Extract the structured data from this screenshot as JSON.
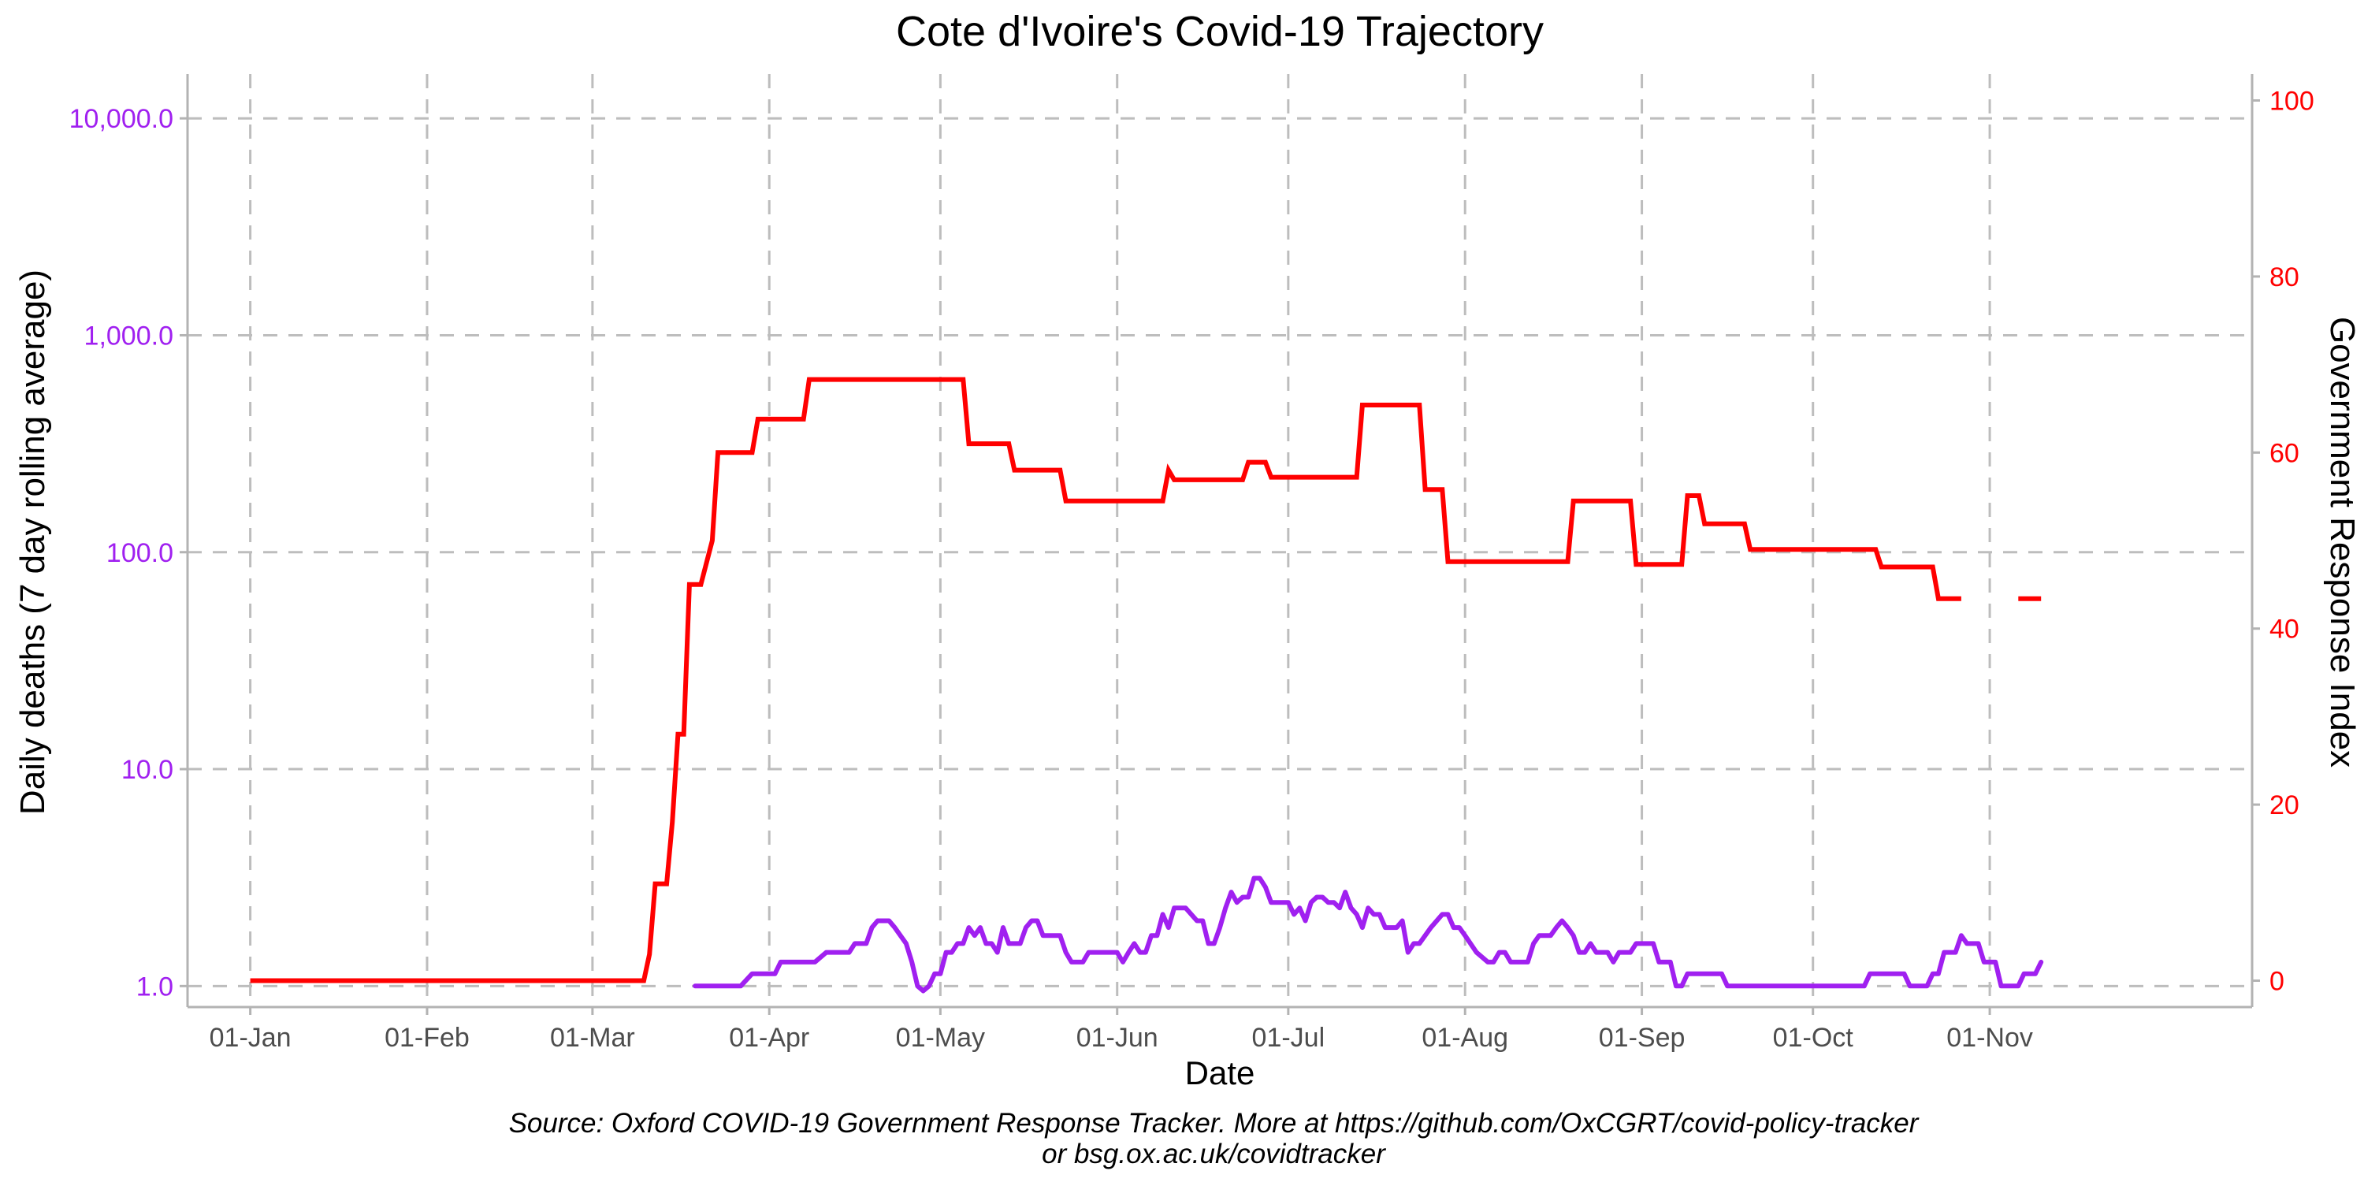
{
  "chart_data": {
    "type": "line",
    "title": "Cote d'Ivoire's Covid-19 Trajectory",
    "xlabel": "Date",
    "caption": [
      "Source: Oxford COVID-19 Government Response Tracker. More at https://github.com/OxCGRT/covid-policy-tracker",
      "or bsg.ox.ac.uk/covidtracker"
    ],
    "x_axis": {
      "type": "date",
      "range": [
        "2019-12-21",
        "2020-12-17"
      ],
      "ticks": [
        {
          "date": "2020-01-01",
          "label": "01-Jan"
        },
        {
          "date": "2020-02-01",
          "label": "01-Feb"
        },
        {
          "date": "2020-03-01",
          "label": "01-Mar"
        },
        {
          "date": "2020-04-01",
          "label": "01-Apr"
        },
        {
          "date": "2020-05-01",
          "label": "01-May"
        },
        {
          "date": "2020-06-01",
          "label": "01-Jun"
        },
        {
          "date": "2020-07-01",
          "label": "01-Jul"
        },
        {
          "date": "2020-08-01",
          "label": "01-Aug"
        },
        {
          "date": "2020-09-01",
          "label": "01-Sep"
        },
        {
          "date": "2020-10-01",
          "label": "01-Oct"
        },
        {
          "date": "2020-11-01",
          "label": "01-Nov"
        }
      ]
    },
    "y_left": {
      "label": "Daily deaths (7 day rolling average)",
      "scale": "log10",
      "range": [
        0.8,
        16000
      ],
      "ticks": [
        {
          "value": 1,
          "label": "1.0"
        },
        {
          "value": 10,
          "label": "10.0"
        },
        {
          "value": 100,
          "label": "100.0"
        },
        {
          "value": 1000,
          "label": "1,000.0"
        },
        {
          "value": 10000,
          "label": "10,000.0"
        }
      ],
      "color": "#a020f0"
    },
    "y_right": {
      "label": "Government Response Index",
      "scale": "linear",
      "range": [
        -3,
        103
      ],
      "ticks": [
        {
          "value": 0,
          "label": "0"
        },
        {
          "value": 20,
          "label": "20"
        },
        {
          "value": 40,
          "label": "40"
        },
        {
          "value": 60,
          "label": "60"
        },
        {
          "value": 80,
          "label": "80"
        },
        {
          "value": 100,
          "label": "100"
        }
      ],
      "color": "#ff0000"
    },
    "grid": true,
    "series": [
      {
        "axis": "left",
        "color": "#a020f0",
        "points": [
          [
            "2020-03-19",
            1.0
          ],
          [
            "2020-03-27",
            1.0
          ],
          [
            "2020-03-29",
            1.14
          ],
          [
            "2020-04-02",
            1.14
          ],
          [
            "2020-04-03",
            1.29
          ],
          [
            "2020-04-09",
            1.29
          ],
          [
            "2020-04-11",
            1.43
          ],
          [
            "2020-04-15",
            1.43
          ],
          [
            "2020-04-16",
            1.57
          ],
          [
            "2020-04-18",
            1.57
          ],
          [
            "2020-04-19",
            1.86
          ],
          [
            "2020-04-20",
            2.0
          ],
          [
            "2020-04-22",
            2.0
          ],
          [
            "2020-04-23",
            1.86
          ],
          [
            "2020-04-24",
            1.71
          ],
          [
            "2020-04-25",
            1.57
          ],
          [
            "2020-04-26",
            1.29
          ],
          [
            "2020-04-27",
            1.0
          ],
          [
            "2020-04-28",
            0.95
          ],
          [
            "2020-04-29",
            1.0
          ],
          [
            "2020-04-30",
            1.14
          ],
          [
            "2020-05-01",
            1.14
          ],
          [
            "2020-05-02",
            1.43
          ],
          [
            "2020-05-03",
            1.43
          ],
          [
            "2020-05-04",
            1.57
          ],
          [
            "2020-05-05",
            1.57
          ],
          [
            "2020-05-06",
            1.86
          ],
          [
            "2020-05-07",
            1.71
          ],
          [
            "2020-05-08",
            1.86
          ],
          [
            "2020-05-09",
            1.57
          ],
          [
            "2020-05-10",
            1.57
          ],
          [
            "2020-05-11",
            1.43
          ],
          [
            "2020-05-12",
            1.86
          ],
          [
            "2020-05-13",
            1.57
          ],
          [
            "2020-05-15",
            1.57
          ],
          [
            "2020-05-16",
            1.86
          ],
          [
            "2020-05-17",
            2.0
          ],
          [
            "2020-05-18",
            2.0
          ],
          [
            "2020-05-19",
            1.71
          ],
          [
            "2020-05-22",
            1.71
          ],
          [
            "2020-05-23",
            1.43
          ],
          [
            "2020-05-24",
            1.29
          ],
          [
            "2020-05-26",
            1.29
          ],
          [
            "2020-05-27",
            1.43
          ],
          [
            "2020-06-01",
            1.43
          ],
          [
            "2020-06-02",
            1.29
          ],
          [
            "2020-06-03",
            1.43
          ],
          [
            "2020-06-04",
            1.57
          ],
          [
            "2020-06-05",
            1.43
          ],
          [
            "2020-06-06",
            1.43
          ],
          [
            "2020-06-07",
            1.71
          ],
          [
            "2020-06-08",
            1.71
          ],
          [
            "2020-06-09",
            2.14
          ],
          [
            "2020-06-10",
            1.86
          ],
          [
            "2020-06-11",
            2.29
          ],
          [
            "2020-06-13",
            2.29
          ],
          [
            "2020-06-14",
            2.14
          ],
          [
            "2020-06-15",
            2.0
          ],
          [
            "2020-06-16",
            2.0
          ],
          [
            "2020-06-17",
            1.57
          ],
          [
            "2020-06-18",
            1.57
          ],
          [
            "2020-06-19",
            1.86
          ],
          [
            "2020-06-20",
            2.29
          ],
          [
            "2020-06-21",
            2.71
          ],
          [
            "2020-06-22",
            2.43
          ],
          [
            "2020-06-23",
            2.57
          ],
          [
            "2020-06-24",
            2.57
          ],
          [
            "2020-06-25",
            3.14
          ],
          [
            "2020-06-26",
            3.14
          ],
          [
            "2020-06-27",
            2.86
          ],
          [
            "2020-06-28",
            2.43
          ],
          [
            "2020-07-01",
            2.43
          ],
          [
            "2020-07-02",
            2.14
          ],
          [
            "2020-07-03",
            2.29
          ],
          [
            "2020-07-04",
            2.0
          ],
          [
            "2020-07-05",
            2.43
          ],
          [
            "2020-07-06",
            2.57
          ],
          [
            "2020-07-07",
            2.57
          ],
          [
            "2020-07-08",
            2.43
          ],
          [
            "2020-07-09",
            2.43
          ],
          [
            "2020-07-10",
            2.29
          ],
          [
            "2020-07-11",
            2.71
          ],
          [
            "2020-07-12",
            2.29
          ],
          [
            "2020-07-13",
            2.14
          ],
          [
            "2020-07-14",
            1.86
          ],
          [
            "2020-07-15",
            2.29
          ],
          [
            "2020-07-16",
            2.14
          ],
          [
            "2020-07-17",
            2.14
          ],
          [
            "2020-07-18",
            1.86
          ],
          [
            "2020-07-20",
            1.86
          ],
          [
            "2020-07-21",
            2.0
          ],
          [
            "2020-07-22",
            1.43
          ],
          [
            "2020-07-23",
            1.57
          ],
          [
            "2020-07-24",
            1.57
          ],
          [
            "2020-07-26",
            1.86
          ],
          [
            "2020-07-28",
            2.14
          ],
          [
            "2020-07-29",
            2.14
          ],
          [
            "2020-07-30",
            1.86
          ],
          [
            "2020-07-31",
            1.86
          ],
          [
            "2020-08-01",
            1.71
          ],
          [
            "2020-08-03",
            1.43
          ],
          [
            "2020-08-05",
            1.29
          ],
          [
            "2020-08-06",
            1.29
          ],
          [
            "2020-08-07",
            1.43
          ],
          [
            "2020-08-08",
            1.43
          ],
          [
            "2020-08-09",
            1.29
          ],
          [
            "2020-08-12",
            1.29
          ],
          [
            "2020-08-13",
            1.57
          ],
          [
            "2020-08-14",
            1.71
          ],
          [
            "2020-08-16",
            1.71
          ],
          [
            "2020-08-17",
            1.86
          ],
          [
            "2020-08-18",
            2.0
          ],
          [
            "2020-08-19",
            1.86
          ],
          [
            "2020-08-20",
            1.71
          ],
          [
            "2020-08-21",
            1.43
          ],
          [
            "2020-08-22",
            1.43
          ],
          [
            "2020-08-23",
            1.57
          ],
          [
            "2020-08-24",
            1.43
          ],
          [
            "2020-08-26",
            1.43
          ],
          [
            "2020-08-27",
            1.29
          ],
          [
            "2020-08-28",
            1.43
          ],
          [
            "2020-08-30",
            1.43
          ],
          [
            "2020-08-31",
            1.57
          ],
          [
            "2020-09-03",
            1.57
          ],
          [
            "2020-09-04",
            1.29
          ],
          [
            "2020-09-06",
            1.29
          ],
          [
            "2020-09-07",
            1.0
          ],
          [
            "2020-09-08",
            1.0
          ],
          [
            "2020-09-09",
            1.14
          ],
          [
            "2020-09-15",
            1.14
          ],
          [
            "2020-09-16",
            1.0
          ],
          [
            "2020-10-10",
            1.0
          ],
          [
            "2020-10-11",
            1.14
          ],
          [
            "2020-10-17",
            1.14
          ],
          [
            "2020-10-18",
            1.0
          ],
          [
            "2020-10-21",
            1.0
          ],
          [
            "2020-10-22",
            1.14
          ],
          [
            "2020-10-23",
            1.14
          ],
          [
            "2020-10-24",
            1.43
          ],
          [
            "2020-10-26",
            1.43
          ],
          [
            "2020-10-27",
            1.71
          ],
          [
            "2020-10-28",
            1.57
          ],
          [
            "2020-10-30",
            1.57
          ],
          [
            "2020-10-31",
            1.29
          ],
          [
            "2020-11-02",
            1.29
          ],
          [
            "2020-11-03",
            1.0
          ],
          [
            "2020-11-06",
            1.0
          ],
          [
            "2020-11-07",
            1.14
          ],
          [
            "2020-11-09",
            1.14
          ],
          [
            "2020-11-10",
            1.29
          ]
        ]
      },
      {
        "axis": "right",
        "color": "#ff0000",
        "segments": [
          [
            [
              "2020-01-01",
              0
            ],
            [
              "2020-03-10",
              0
            ],
            [
              "2020-03-11",
              3
            ],
            [
              "2020-03-12",
              11
            ],
            [
              "2020-03-14",
              11
            ],
            [
              "2020-03-15",
              18
            ],
            [
              "2020-03-16",
              28
            ],
            [
              "2020-03-17",
              28
            ],
            [
              "2020-03-18",
              45
            ],
            [
              "2020-03-20",
              45
            ],
            [
              "2020-03-22",
              50
            ],
            [
              "2020-03-23",
              60
            ],
            [
              "2020-03-29",
              60
            ],
            [
              "2020-03-30",
              63.8
            ],
            [
              "2020-04-07",
              63.8
            ],
            [
              "2020-04-08",
              68.3
            ],
            [
              "2020-05-05",
              68.3
            ],
            [
              "2020-05-06",
              61
            ],
            [
              "2020-05-13",
              61
            ],
            [
              "2020-05-14",
              58
            ],
            [
              "2020-05-22",
              58
            ],
            [
              "2020-05-23",
              54.5
            ],
            [
              "2020-06-09",
              54.5
            ],
            [
              "2020-06-10",
              58
            ],
            [
              "2020-06-11",
              56.9
            ],
            [
              "2020-06-23",
              56.9
            ],
            [
              "2020-06-24",
              58.9
            ],
            [
              "2020-06-27",
              58.9
            ],
            [
              "2020-06-28",
              57.2
            ],
            [
              "2020-07-13",
              57.2
            ],
            [
              "2020-07-14",
              65.4
            ],
            [
              "2020-07-24",
              65.4
            ],
            [
              "2020-07-25",
              55.8
            ],
            [
              "2020-07-28",
              55.8
            ],
            [
              "2020-07-29",
              47.6
            ],
            [
              "2020-08-19",
              47.6
            ],
            [
              "2020-08-20",
              54.5
            ],
            [
              "2020-08-30",
              54.5
            ],
            [
              "2020-08-31",
              47.3
            ],
            [
              "2020-09-08",
              47.3
            ],
            [
              "2020-09-09",
              55.1
            ],
            [
              "2020-09-11",
              55.1
            ],
            [
              "2020-09-12",
              51.9
            ],
            [
              "2020-09-19",
              51.9
            ],
            [
              "2020-09-20",
              49
            ],
            [
              "2020-10-12",
              49
            ],
            [
              "2020-10-13",
              47
            ],
            [
              "2020-10-22",
              47
            ],
            [
              "2020-10-23",
              43.4
            ],
            [
              "2020-10-27",
              43.4
            ]
          ],
          [
            [
              "2020-11-06",
              43.4
            ],
            [
              "2020-11-10",
              43.4
            ]
          ]
        ]
      }
    ]
  }
}
